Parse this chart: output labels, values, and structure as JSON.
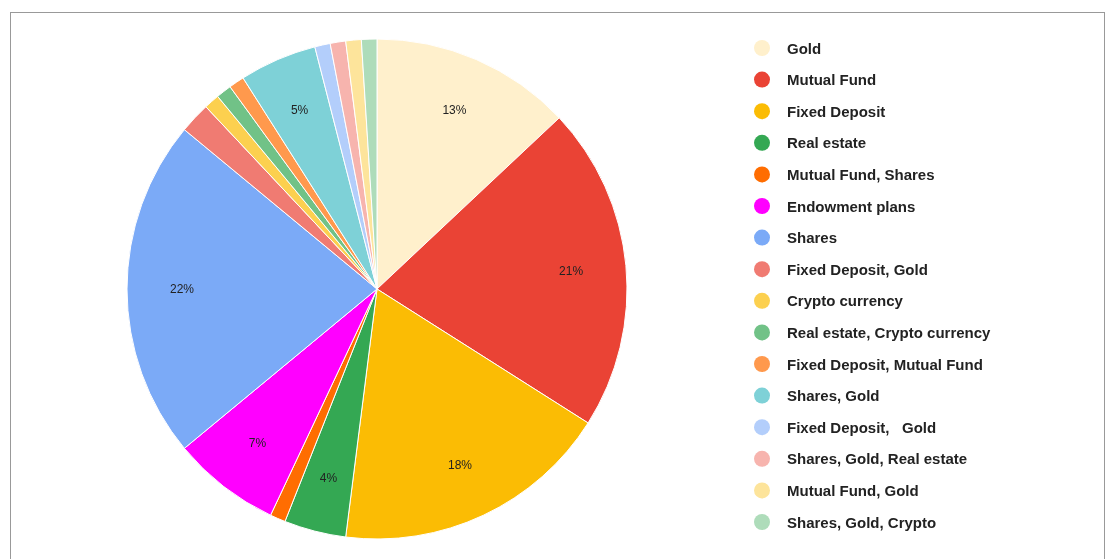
{
  "chart_data": {
    "type": "pie",
    "categories": [
      "Gold",
      "Mutual Fund",
      "Fixed Deposit",
      "Real estate",
      "Mutual Fund, Shares",
      "Endowment plans",
      "Shares",
      "Fixed Deposit, Gold",
      "Crypto currency",
      "Real estate, Crypto currency",
      "Fixed Deposit, Mutual Fund",
      "Shares, Gold",
      "Fixed Deposit,   Gold",
      "Shares, Gold, Real estate",
      "Mutual Fund, Gold",
      "Shares, Gold, Crypto"
    ],
    "values": [
      13,
      21,
      18,
      4,
      1,
      7,
      22,
      2,
      1,
      1,
      1,
      5,
      1,
      1,
      1,
      1
    ],
    "colors": [
      "#fff0cc",
      "#ea4335",
      "#fbbc04",
      "#34a853",
      "#ff6d01",
      "#ff00ff",
      "#7baaf7",
      "#f07b72",
      "#fcd04f",
      "#71c287",
      "#ff994d",
      "#7ed1d7",
      "#b3cefb",
      "#f7b4ae",
      "#fde49b",
      "#aedcba"
    ],
    "value_labels": [
      "13%",
      "21%",
      "18%",
      "4%",
      null,
      "7%",
      "22%",
      null,
      null,
      null,
      null,
      "5%",
      null,
      null,
      null,
      null
    ],
    "legend": "right"
  }
}
